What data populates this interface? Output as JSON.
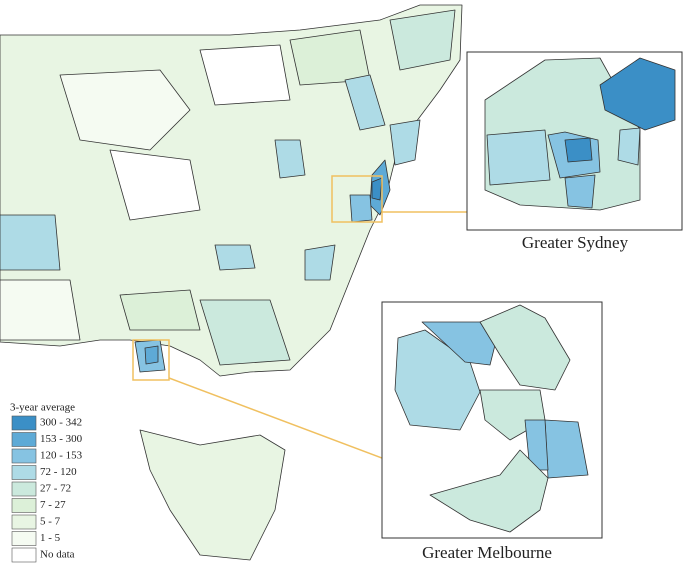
{
  "legend": {
    "title": "3-year average",
    "items": [
      {
        "label": "300 - 342",
        "color": "#3b8fc6"
      },
      {
        "label": "153 - 300",
        "color": "#5eaad6"
      },
      {
        "label": "120 - 153",
        "color": "#86c3e2"
      },
      {
        "label": "72 - 120",
        "color": "#aedbe6"
      },
      {
        "label": "27 - 72",
        "color": "#cbe9dd"
      },
      {
        "label": "7 - 27",
        "color": "#dcf0d8"
      },
      {
        "label": "5 - 7",
        "color": "#e8f5e3"
      },
      {
        "label": "1 - 5",
        "color": "#f5fbf2"
      },
      {
        "label": "No data",
        "color": "#ffffff"
      }
    ]
  },
  "insets": [
    {
      "label": "Greater Sydney"
    },
    {
      "label": "Greater Melbourne"
    }
  ]
}
